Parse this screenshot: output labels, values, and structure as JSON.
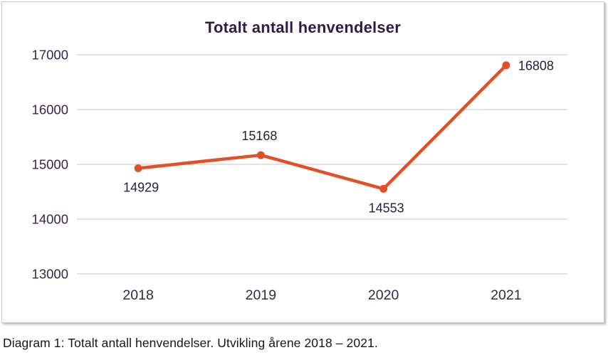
{
  "title": "Totalt antall henvendelser",
  "caption": "Diagram 1: Totalt antall henvendelser. Utvikling årene 2018 – 2021.",
  "colors": {
    "line": "#e2502a",
    "marker": "#e2502a",
    "title_text": "#2d1f44",
    "axis_text": "#35284a",
    "data_label_text": "#27203e",
    "gridline": "#d8d2cc",
    "card_border": "#c9c9c9",
    "caption_text": "#161618",
    "background": "#ffffff"
  },
  "chart_data": {
    "type": "line",
    "title": "Totalt antall henvendelser",
    "categories": [
      "2018",
      "2019",
      "2020",
      "2021"
    ],
    "values": [
      14929,
      15168,
      14553,
      16808
    ],
    "data_labels": [
      "14929",
      "15168",
      "14553",
      "16808"
    ],
    "data_label_positions": [
      "below",
      "above",
      "below",
      "right"
    ],
    "xlabel": "",
    "ylabel": "",
    "ylim": [
      13000,
      17000
    ],
    "yticks": [
      13000,
      14000,
      15000,
      16000,
      17000
    ],
    "grid": "horizontal-only",
    "legend": "none",
    "marker": "filled-circle"
  }
}
